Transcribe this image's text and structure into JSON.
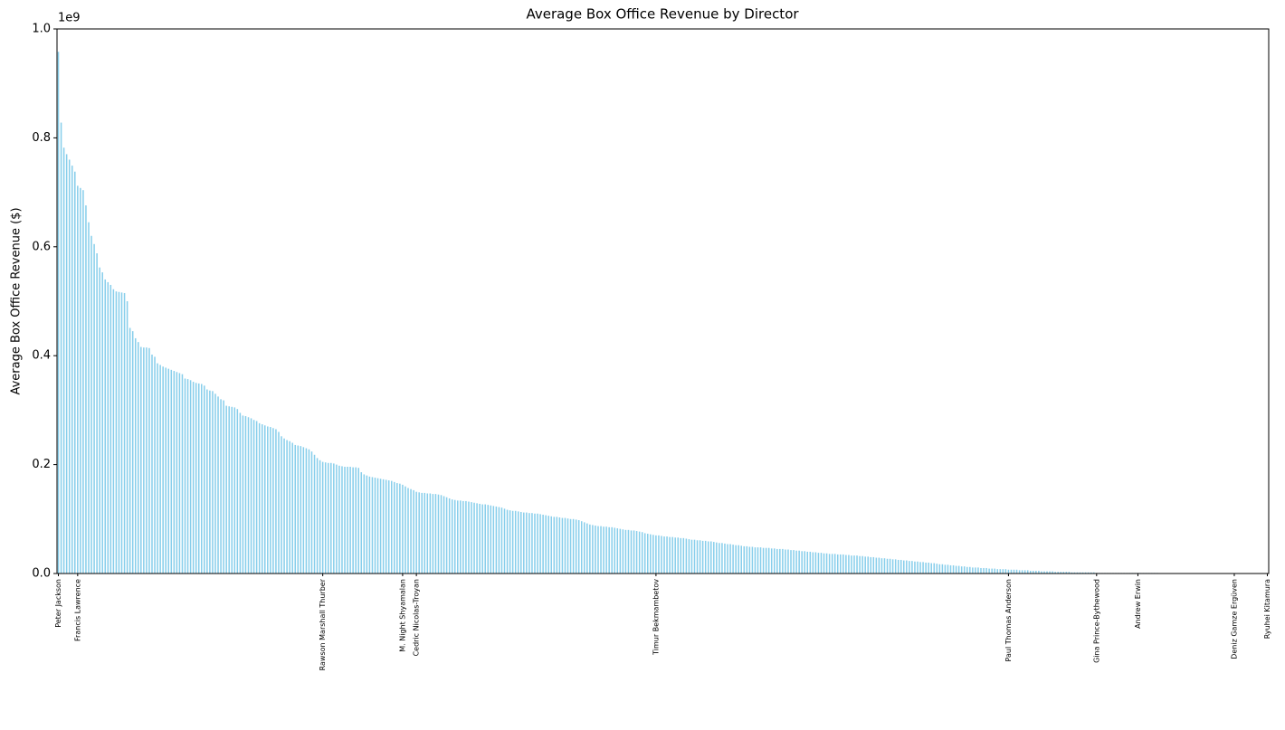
{
  "chart_data": {
    "type": "bar",
    "title": "Average Box Office Revenue by Director",
    "y_label": "Average Box Office Revenue ($)",
    "y_offset_label": "1e9",
    "color": "#87ceeb",
    "categories": [
      "Peter Jackson",
      null,
      null,
      null,
      null,
      null,
      null,
      "Francis Lawrence",
      null,
      null,
      null,
      null,
      null,
      null,
      null,
      null,
      null,
      null,
      null,
      null,
      null,
      null,
      null,
      null,
      null,
      null,
      null,
      null,
      null,
      null,
      null,
      null,
      null,
      null,
      null,
      null,
      null,
      null,
      null,
      null,
      null,
      null,
      null,
      null,
      null,
      null,
      null,
      null,
      null,
      null,
      null,
      null,
      null,
      null,
      null,
      null,
      null,
      null,
      null,
      null,
      null,
      null,
      null,
      null,
      null,
      null,
      null,
      null,
      null,
      null,
      null,
      null,
      null,
      null,
      null,
      null,
      null,
      null,
      null,
      null,
      null,
      null,
      null,
      null,
      null,
      null,
      null,
      null,
      null,
      null,
      null,
      null,
      null,
      null,
      null,
      null,
      "Rawson Marshall Thurber",
      null,
      null,
      null,
      null,
      null,
      null,
      null,
      null,
      null,
      null,
      null,
      null,
      null,
      null,
      null,
      null,
      null,
      null,
      null,
      null,
      null,
      null,
      null,
      null,
      null,
      null,
      null,
      null,
      "M. Night Shyamalan",
      null,
      null,
      null,
      null,
      "Cedric Nicolas-Troyan",
      null,
      null,
      null,
      null,
      null,
      null,
      null,
      null,
      null,
      null,
      null,
      null,
      null,
      null,
      null,
      null,
      null,
      null,
      null,
      null,
      null,
      null,
      null,
      null,
      null,
      null,
      null,
      null,
      null,
      null,
      null,
      null,
      null,
      null,
      null,
      null,
      null,
      null,
      null,
      null,
      null,
      null,
      null,
      null,
      null,
      null,
      null,
      null,
      null,
      null,
      null,
      null,
      null,
      null,
      null,
      null,
      null,
      null,
      null,
      null,
      null,
      null,
      null,
      null,
      null,
      null,
      null,
      null,
      null,
      null,
      null,
      null,
      null,
      null,
      null,
      null,
      null,
      null,
      null,
      null,
      null,
      null,
      null,
      null,
      null,
      null,
      "Timur Bekmambetov",
      null,
      null,
      null,
      null,
      null,
      null,
      null,
      null,
      null,
      null,
      null,
      null,
      null,
      null,
      null,
      null,
      null,
      null,
      null,
      null,
      null,
      null,
      null,
      null,
      null,
      null,
      null,
      null,
      null,
      null,
      null,
      null,
      null,
      null,
      null,
      null,
      null,
      null,
      null,
      null,
      null,
      null,
      null,
      null,
      null,
      null,
      null,
      null,
      null,
      null,
      null,
      null,
      null,
      null,
      null,
      null,
      null,
      null,
      null,
      null,
      null,
      null,
      null,
      null,
      null,
      null,
      null,
      null,
      null,
      null,
      null,
      null,
      null,
      null,
      null,
      null,
      null,
      null,
      null,
      null,
      null,
      null,
      null,
      null,
      null,
      null,
      null,
      null,
      null,
      null,
      null,
      null,
      null,
      null,
      null,
      null,
      null,
      null,
      null,
      null,
      null,
      null,
      null,
      null,
      null,
      null,
      null,
      null,
      null,
      null,
      null,
      null,
      null,
      null,
      null,
      null,
      null,
      null,
      null,
      null,
      null,
      null,
      null,
      null,
      null,
      null,
      null,
      "Paul Thomas Anderson",
      null,
      null,
      null,
      null,
      null,
      null,
      null,
      null,
      null,
      null,
      null,
      null,
      null,
      null,
      null,
      null,
      null,
      null,
      null,
      null,
      null,
      null,
      null,
      null,
      null,
      null,
      null,
      null,
      null,
      null,
      null,
      "Gina Prince-Bythewood",
      null,
      null,
      null,
      null,
      null,
      null,
      null,
      null,
      null,
      null,
      null,
      null,
      null,
      null,
      "Andrew Erwin",
      null,
      null,
      null,
      null,
      null,
      null,
      null,
      null,
      null,
      null,
      null,
      null,
      null,
      null,
      null,
      null,
      null,
      null,
      null,
      null,
      null,
      null,
      null,
      null,
      null,
      null,
      null,
      null,
      null,
      null,
      null,
      null,
      null,
      null,
      "Deniz Gamze Ergüven",
      null,
      null,
      null,
      null,
      null,
      null,
      null,
      null,
      null,
      null,
      null,
      "Ryuhei Kitamura"
    ],
    "values": [
      0.958,
      0.828,
      0.782,
      0.77,
      0.76,
      0.749,
      0.738,
      0.712,
      0.708,
      0.704,
      0.676,
      0.645,
      0.62,
      0.605,
      0.588,
      0.562,
      0.553,
      0.54,
      0.535,
      0.53,
      0.522,
      0.518,
      0.517,
      0.516,
      0.515,
      0.5,
      0.451,
      0.445,
      0.432,
      0.425,
      0.416,
      0.415,
      0.415,
      0.414,
      0.402,
      0.398,
      0.386,
      0.383,
      0.38,
      0.378,
      0.376,
      0.374,
      0.372,
      0.37,
      0.368,
      0.366,
      0.358,
      0.357,
      0.355,
      0.352,
      0.35,
      0.349,
      0.348,
      0.345,
      0.338,
      0.336,
      0.335,
      0.33,
      0.325,
      0.32,
      0.318,
      0.308,
      0.307,
      0.306,
      0.305,
      0.302,
      0.295,
      0.29,
      0.289,
      0.287,
      0.285,
      0.282,
      0.28,
      0.276,
      0.274,
      0.272,
      0.27,
      0.269,
      0.267,
      0.265,
      0.26,
      0.252,
      0.248,
      0.245,
      0.243,
      0.24,
      0.236,
      0.235,
      0.234,
      0.232,
      0.23,
      0.228,
      0.224,
      0.218,
      0.212,
      0.208,
      0.205,
      0.204,
      0.203,
      0.203,
      0.202,
      0.2,
      0.198,
      0.197,
      0.196,
      0.196,
      0.196,
      0.195,
      0.195,
      0.194,
      0.186,
      0.182,
      0.18,
      0.178,
      0.177,
      0.176,
      0.175,
      0.174,
      0.173,
      0.172,
      0.171,
      0.17,
      0.168,
      0.166,
      0.165,
      0.163,
      0.16,
      0.157,
      0.155,
      0.153,
      0.15,
      0.149,
      0.148,
      0.148,
      0.147,
      0.147,
      0.146,
      0.146,
      0.145,
      0.144,
      0.142,
      0.14,
      0.138,
      0.136,
      0.135,
      0.134,
      0.134,
      0.133,
      0.133,
      0.132,
      0.131,
      0.13,
      0.129,
      0.128,
      0.127,
      0.127,
      0.126,
      0.125,
      0.124,
      0.123,
      0.122,
      0.121,
      0.119,
      0.117,
      0.116,
      0.115,
      0.115,
      0.114,
      0.113,
      0.112,
      0.112,
      0.111,
      0.111,
      0.11,
      0.11,
      0.109,
      0.108,
      0.107,
      0.106,
      0.105,
      0.104,
      0.104,
      0.103,
      0.102,
      0.102,
      0.101,
      0.1,
      0.1,
      0.099,
      0.098,
      0.096,
      0.094,
      0.092,
      0.09,
      0.089,
      0.088,
      0.087,
      0.087,
      0.086,
      0.086,
      0.085,
      0.085,
      0.084,
      0.083,
      0.082,
      0.081,
      0.08,
      0.08,
      0.079,
      0.079,
      0.078,
      0.077,
      0.076,
      0.074,
      0.073,
      0.072,
      0.071,
      0.07,
      0.07,
      0.069,
      0.068,
      0.068,
      0.067,
      0.067,
      0.066,
      0.066,
      0.065,
      0.065,
      0.064,
      0.063,
      0.062,
      0.062,
      0.061,
      0.061,
      0.06,
      0.06,
      0.059,
      0.059,
      0.058,
      0.057,
      0.056,
      0.056,
      0.055,
      0.054,
      0.054,
      0.053,
      0.052,
      0.052,
      0.051,
      0.05,
      0.05,
      0.049,
      0.049,
      0.048,
      0.048,
      0.048,
      0.047,
      0.047,
      0.047,
      0.046,
      0.046,
      0.045,
      0.045,
      0.045,
      0.044,
      0.044,
      0.043,
      0.043,
      0.042,
      0.042,
      0.041,
      0.041,
      0.04,
      0.04,
      0.039,
      0.039,
      0.038,
      0.038,
      0.037,
      0.037,
      0.036,
      0.036,
      0.036,
      0.035,
      0.035,
      0.035,
      0.034,
      0.034,
      0.033,
      0.033,
      0.033,
      0.032,
      0.032,
      0.031,
      0.031,
      0.03,
      0.03,
      0.029,
      0.029,
      0.028,
      0.028,
      0.027,
      0.027,
      0.026,
      0.026,
      0.025,
      0.025,
      0.024,
      0.024,
      0.023,
      0.023,
      0.022,
      0.022,
      0.021,
      0.021,
      0.02,
      0.02,
      0.019,
      0.019,
      0.018,
      0.017,
      0.017,
      0.016,
      0.016,
      0.015,
      0.015,
      0.014,
      0.014,
      0.013,
      0.013,
      0.012,
      0.012,
      0.011,
      0.011,
      0.011,
      0.01,
      0.01,
      0.01,
      0.009,
      0.009,
      0.009,
      0.008,
      0.008,
      0.008,
      0.008,
      0.007,
      0.007,
      0.007,
      0.007,
      0.006,
      0.006,
      0.006,
      0.006,
      0.005,
      0.005,
      0.005,
      0.005,
      0.004,
      0.004,
      0.004,
      0.004,
      0.004,
      0.003,
      0.003,
      0.003,
      0.003,
      0.003,
      0.003,
      0.002,
      0.002,
      0.002,
      0.002,
      0.002,
      0.002,
      0.002,
      0.002,
      0.002,
      0.001,
      0.001,
      0.001,
      0.001,
      0.001,
      0.001,
      0.001,
      0.001,
      0.001,
      0.001,
      0.001,
      0.001,
      0.001,
      0.001,
      0.001,
      0.001,
      0.001,
      0.001,
      0.001,
      0.001,
      0.001,
      0.001,
      0.001,
      0.0005,
      0.0005,
      0.0005,
      0.0005,
      0.0005,
      0.0005,
      0.0005,
      0.0005,
      0.0005,
      0.0005,
      0.0005,
      0.0005,
      0.0005,
      0.0005,
      0.0005,
      0.0005,
      0.0005,
      0.0005,
      0.0005,
      0.0005,
      0.0002,
      0.0002,
      0.0002,
      0.0002,
      0.0002,
      0.0002,
      0.0002,
      0.0002,
      0.0002,
      0.0002,
      0.0002,
      0.0002,
      0.0002,
      0.0002,
      0.0002,
      0.0002,
      0.0002,
      0.0002,
      0.0002,
      0.0002
    ],
    "ylim": [
      0,
      1.0
    ],
    "yticks": [
      {
        "value": 0,
        "label": "0.0"
      },
      0.2,
      0.4,
      0.6,
      0.8,
      {
        "value": 1,
        "label": "1.0"
      }
    ]
  }
}
